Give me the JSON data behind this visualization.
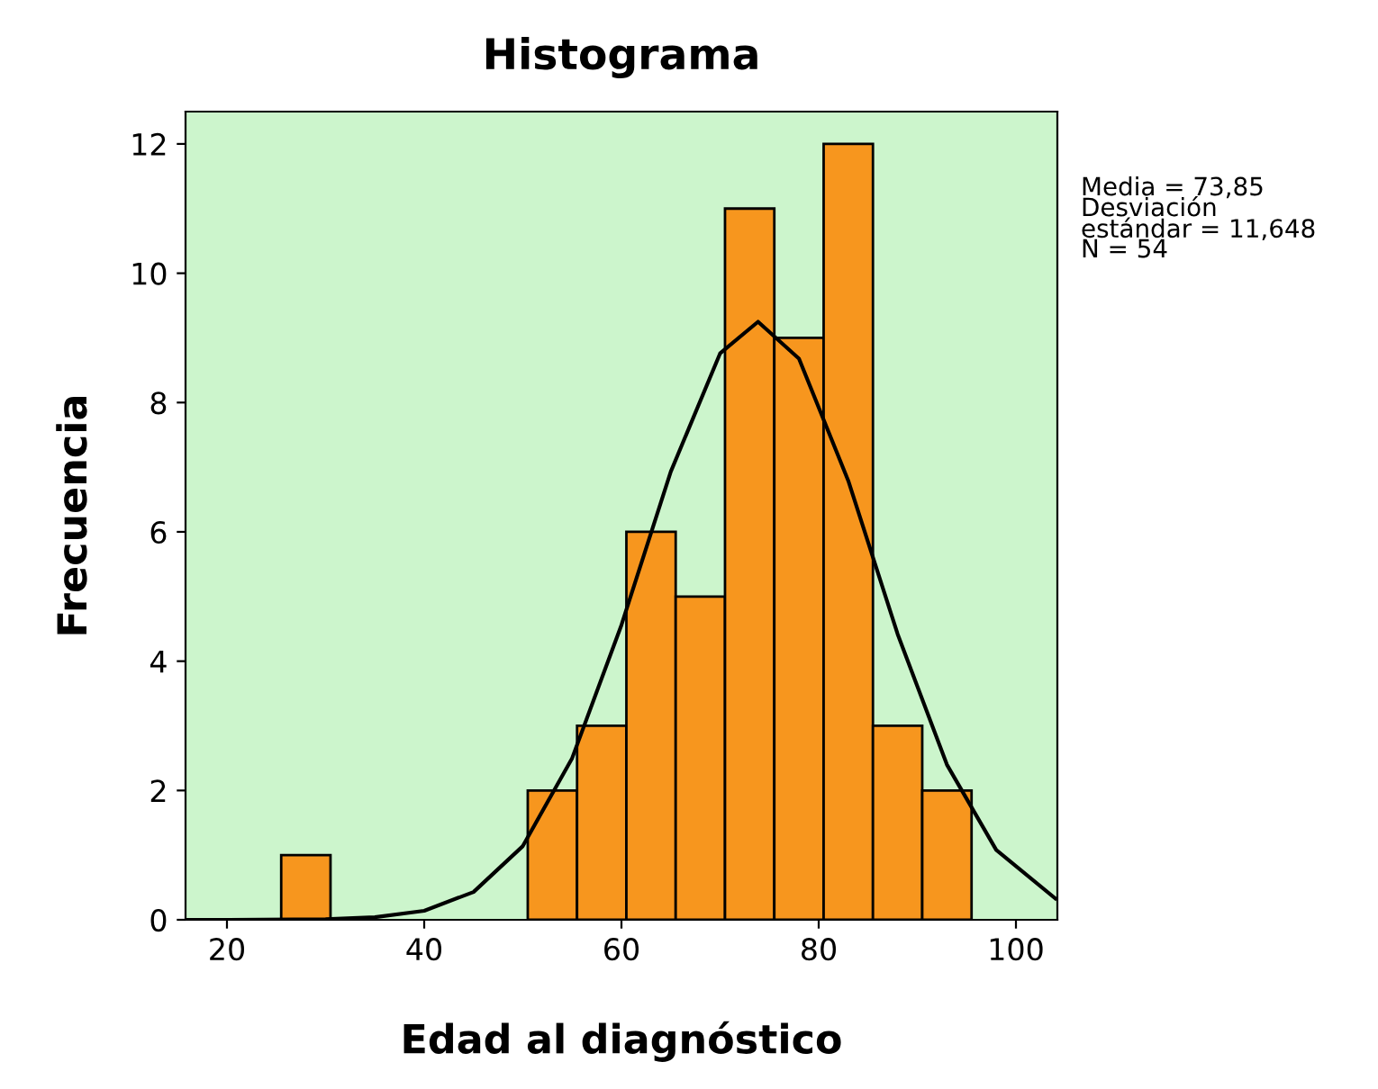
{
  "chart_data": {
    "type": "histogram",
    "title": "Histograma",
    "xlabel": "Edad al diagnóstico",
    "ylabel": "Frecuencia",
    "bins": [
      25.5,
      30.5,
      35.5,
      40.5,
      45.5,
      50.5,
      55.5,
      60.5,
      65.5,
      70.5,
      75.5,
      80.5,
      85.5,
      90.5,
      95.5
    ],
    "values": [
      1,
      0,
      0,
      0,
      0,
      2,
      3,
      6,
      5,
      11,
      9,
      12,
      3,
      2
    ],
    "color": "#f7961e",
    "series": [
      {
        "type": "line",
        "color": "#000000",
        "x": [
          16,
          20,
          30,
          35,
          40,
          45,
          50,
          55,
          60,
          65,
          70,
          73.85,
          78,
          83,
          88,
          93,
          98,
          104
        ],
        "values": [
          0,
          0,
          0.01,
          0.04,
          0.14,
          0.43,
          1.14,
          2.5,
          4.56,
          6.93,
          8.76,
          9.25,
          8.68,
          6.79,
          4.42,
          2.4,
          1.08,
          0.33
        ]
      }
    ],
    "xlim": [
      15.8,
      104.2
    ],
    "ylim": [
      0,
      12.5
    ],
    "xticks": [
      20,
      40,
      60,
      80,
      100
    ],
    "yticks": [
      0,
      2,
      4,
      6,
      8,
      10,
      12
    ],
    "grid": false,
    "legend": false,
    "annotations": [
      "Media = 73,85",
      "Desviación\nestándar = 11,648",
      "N = 54"
    ]
  }
}
